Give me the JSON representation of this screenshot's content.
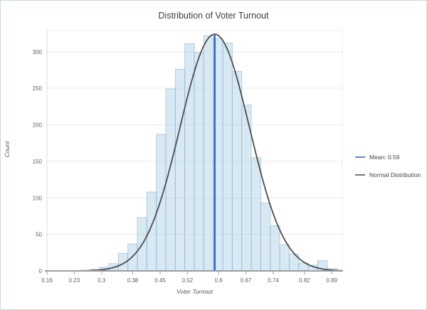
{
  "chart_data": {
    "type": "bar",
    "subtype": "histogram",
    "title": "Distribution of Voter Turnout",
    "xlabel": "Voter Turnout",
    "ylabel": "Count",
    "x_tick_labels": [
      "0.16",
      "0.23",
      "0.3",
      "0.38",
      "0.45",
      "0.52",
      "0.6",
      "0.67",
      "0.74",
      "0.82",
      "0.89"
    ],
    "x_tick_values": [
      0.16,
      0.23,
      0.3,
      0.38,
      0.45,
      0.52,
      0.6,
      0.67,
      0.74,
      0.82,
      0.89
    ],
    "y_tick_labels": [
      "0",
      "50",
      "100",
      "150",
      "200",
      "250",
      "300"
    ],
    "y_tick_values": [
      0,
      50,
      100,
      150,
      200,
      250,
      300
    ],
    "xlim": [
      0.16,
      0.917
    ],
    "ylim": [
      0,
      329
    ],
    "grid": true,
    "bins": {
      "start": 0.27,
      "width": 0.02433,
      "counts": [
        2,
        5,
        10,
        24,
        37,
        73,
        108,
        187,
        249,
        276,
        311,
        299,
        322,
        318,
        312,
        273,
        227,
        155,
        93,
        62,
        36,
        23,
        11,
        8,
        14,
        3
      ]
    },
    "mean_line": {
      "value": 0.59,
      "label": "Mean: 0.59",
      "color": "#1d5ac8"
    },
    "normal_curve": {
      "mu": 0.59,
      "sigma": 0.089,
      "peak": 324,
      "label": "Normal Distribution",
      "color": "#4d4d4d"
    },
    "legend": {
      "position": "right",
      "entries": [
        {
          "label": "Mean: 0.59",
          "color": "#5b87d5"
        },
        {
          "label": "Normal Distribution",
          "color": "#757575"
        }
      ]
    },
    "colors": {
      "bar_fill": "rgba(177,212,232,0.5)",
      "bar_stroke": "rgba(130,176,207,0.55)",
      "gridline": "#e9e9e9",
      "axis_line": "#9e9e9e",
      "y_axis_line": "#dcdcdc",
      "plot_border": "#ededed",
      "title_text": "#3d3d3d",
      "tick_text": "#5f5f5f",
      "outer_border": "#cdd8de",
      "background": "#ffffff"
    }
  }
}
